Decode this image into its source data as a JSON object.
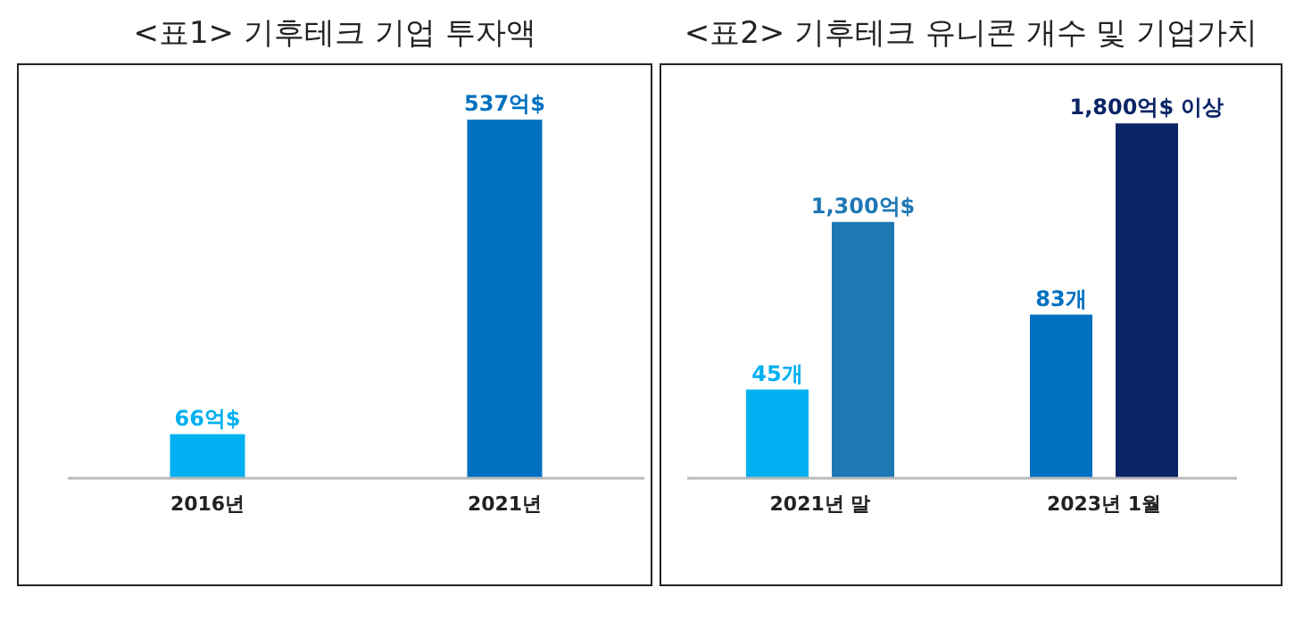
{
  "chart_data": [
    {
      "type": "bar",
      "title": "<표1> 기후테크 기업 투자액",
      "categories": [
        "2016년",
        "2021년"
      ],
      "tick_labels": "x",
      "ylim": [
        0,
        620
      ],
      "series": [
        {
          "colors": [
            "#00b0f0",
            "#0070c0"
          ],
          "values": [
            66,
            537
          ],
          "value_labels": [
            "66억$",
            "537억$"
          ]
        }
      ]
    },
    {
      "type": "bar",
      "title": "<표2> 기후테크 유니콘 개수 및 기업가치",
      "categories": [
        "2021년 말",
        "2023년 1월"
      ],
      "tick_labels": "x",
      "ylim": [
        0,
        210
      ],
      "y2lim": [
        0,
        2100
      ],
      "series": [
        {
          "colors": [
            "#00b0f0",
            "#0070c0"
          ],
          "values": [
            45,
            83
          ],
          "value_labels": [
            "45개",
            "83개"
          ]
        },
        {
          "axis": "y2",
          "colors": [
            "#1e78b4",
            "#0a2466"
          ],
          "values": [
            1300,
            1800
          ],
          "value_labels": [
            "1,300억$",
            "1,800억$ 이상"
          ]
        }
      ]
    }
  ]
}
